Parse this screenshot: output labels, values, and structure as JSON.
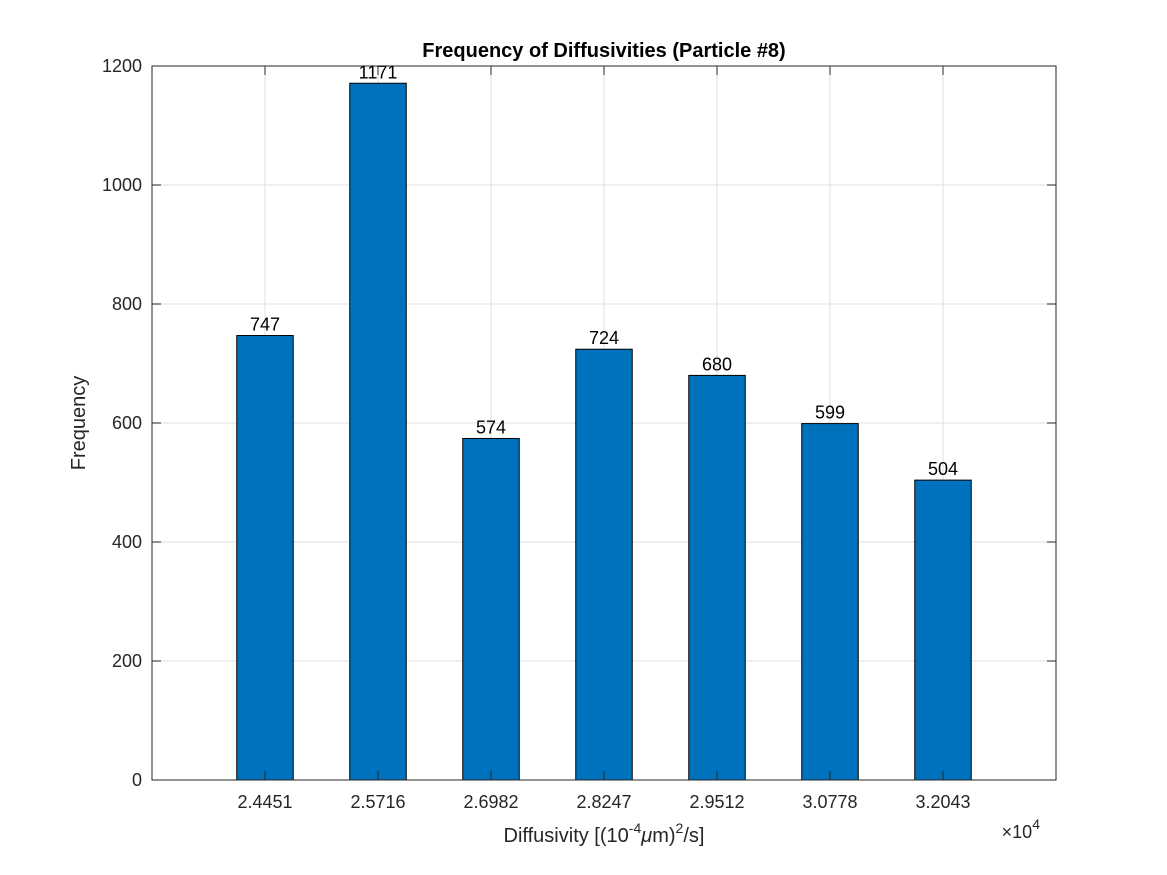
{
  "chart_data": {
    "type": "bar",
    "title": "Frequency of Diffusivities (Particle #8)",
    "xlabel_parts": {
      "prefix": "Diffusivity [(10",
      "exp1": "-4",
      "mu": "μ",
      "mid": "m)",
      "exp2": "2",
      "suffix": "/s]"
    },
    "ylabel": "Frequency",
    "x_multiplier": {
      "times": "×10",
      "exp": "4"
    },
    "categories": [
      "2.4451",
      "2.5716",
      "2.6982",
      "2.8247",
      "2.9512",
      "3.0778",
      "3.2043"
    ],
    "values": [
      747,
      1171,
      574,
      724,
      680,
      599,
      504
    ],
    "data_labels": [
      "747",
      "1171",
      "574",
      "724",
      "680",
      "599",
      "504"
    ],
    "ylim": [
      0,
      1200
    ],
    "yticks": [
      0,
      200,
      400,
      600,
      800,
      1000,
      1200
    ],
    "ytick_labels": [
      "0",
      "200",
      "400",
      "600",
      "800",
      "1000",
      "1200"
    ],
    "grid": true,
    "bar_color": "#0072bd"
  }
}
